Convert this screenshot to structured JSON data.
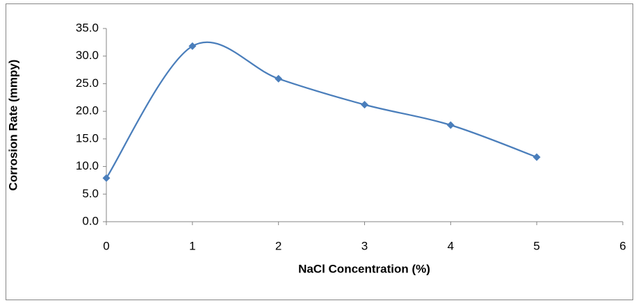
{
  "chart_data": {
    "type": "scatter",
    "line": "smooth",
    "color": "#4a7ebb",
    "x_label": "NaCl Concentration (%)",
    "y_label": "Corrosion Rate (mmpy)",
    "series": [
      {
        "x": [
          0,
          1,
          2,
          3,
          4,
          5
        ],
        "values": [
          7.9,
          31.8,
          25.9,
          21.2,
          17.5,
          11.7
        ]
      }
    ],
    "xlim": [
      0,
      6
    ],
    "xticks": [
      0,
      1,
      2,
      3,
      4,
      5,
      6
    ],
    "ylim": [
      0,
      35
    ],
    "yticks": [
      {
        "value": 0,
        "label": "0.0"
      },
      {
        "value": 5,
        "label": "5.0"
      },
      {
        "value": 10,
        "label": "10.0"
      },
      {
        "value": 15,
        "label": "15.0"
      },
      {
        "value": 20,
        "label": "20.0"
      },
      {
        "value": 25,
        "label": "25.0"
      },
      {
        "value": 30,
        "label": "30.0"
      },
      {
        "value": 35,
        "label": "35.0"
      }
    ],
    "grid": false
  }
}
